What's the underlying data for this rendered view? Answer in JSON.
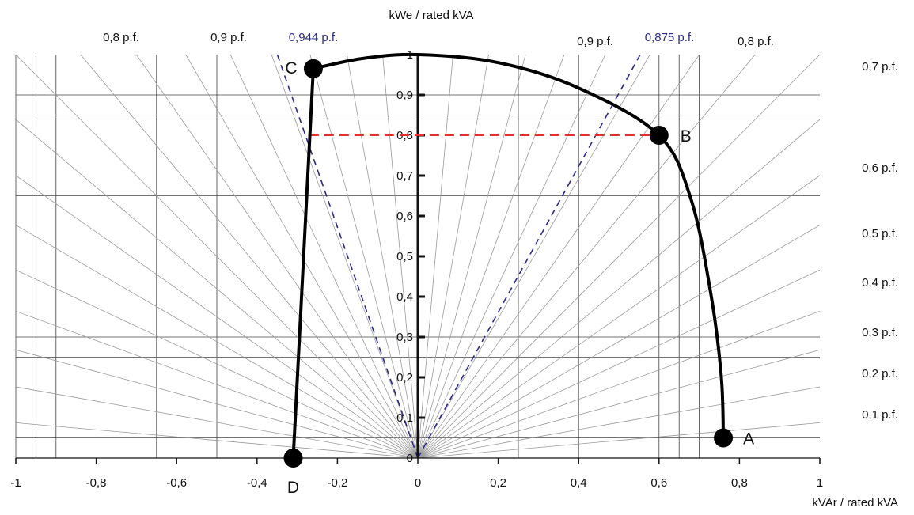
{
  "chart_data": {
    "type": "line",
    "title": "",
    "xlabel": "kVAr / rated kVA",
    "ylabel": "kWe / rated kVA",
    "xlim": [
      -1,
      1
    ],
    "ylim": [
      0,
      1
    ],
    "x_ticks": [
      "-1",
      "-0,8",
      "-0,6",
      "-0,4",
      "-0,2",
      "0",
      "0,2",
      "0,4",
      "0,6",
      "0,8",
      "1"
    ],
    "y_ticks": [
      "0",
      "0,1",
      "0,2",
      "0,3",
      "0,4",
      "0,5",
      "0,6",
      "0,7",
      "0,8",
      "0,9",
      "1"
    ],
    "grid": true,
    "pf_lines_right": [
      {
        "label": "0,1 p.f.",
        "pf": 0.1
      },
      {
        "label": "0,2 p.f.",
        "pf": 0.2
      },
      {
        "label": "0,3 p.f.",
        "pf": 0.3
      },
      {
        "label": "0,4 p.f.",
        "pf": 0.4
      },
      {
        "label": "0,5 p.f.",
        "pf": 0.5
      },
      {
        "label": "0,6 p.f.",
        "pf": 0.6
      },
      {
        "label": "0,7 p.f.",
        "pf": 0.7
      },
      {
        "label": "0,8 p.f.",
        "pf": 0.8
      },
      {
        "label": "0,9 p.f.",
        "pf": 0.9
      }
    ],
    "pf_lines_left": [
      {
        "label": "0,8 p.f.",
        "pf": 0.8
      },
      {
        "label": "0,9 p.f.",
        "pf": 0.9
      }
    ],
    "pf_limits": [
      {
        "label": "0,944 p.f.",
        "pf": 0.944,
        "side": "left",
        "color": "#2a2a8a"
      },
      {
        "label": "0,875 p.f.",
        "pf": 0.875,
        "side": "right",
        "color": "#2a2a8a"
      }
    ],
    "reference_line": {
      "y": 0.8,
      "x_from": -0.27,
      "x_to": 0.6,
      "color": "#e03030"
    },
    "capability_curve": {
      "color": "#000000",
      "points": [
        {
          "label": "D",
          "x": -0.31,
          "y": 0.0
        },
        {
          "label": "C",
          "x": -0.26,
          "y": 0.965
        },
        {
          "label": "",
          "x": -0.14,
          "y": 0.99
        },
        {
          "label": "",
          "x": 0.0,
          "y": 1.0
        },
        {
          "label": "",
          "x": 0.2,
          "y": 0.98
        },
        {
          "label": "",
          "x": 0.4,
          "y": 0.917
        },
        {
          "label": "B",
          "x": 0.6,
          "y": 0.8
        },
        {
          "label": "",
          "x": 0.68,
          "y": 0.64
        },
        {
          "label": "",
          "x": 0.73,
          "y": 0.4
        },
        {
          "label": "",
          "x": 0.755,
          "y": 0.2
        },
        {
          "label": "A",
          "x": 0.76,
          "y": 0.05
        }
      ]
    },
    "marked_points": [
      {
        "label": "A",
        "x": 0.76,
        "y": 0.05
      },
      {
        "label": "B",
        "x": 0.6,
        "y": 0.8
      },
      {
        "label": "C",
        "x": -0.26,
        "y": 0.965
      },
      {
        "label": "D",
        "x": -0.31,
        "y": 0.0
      }
    ]
  }
}
